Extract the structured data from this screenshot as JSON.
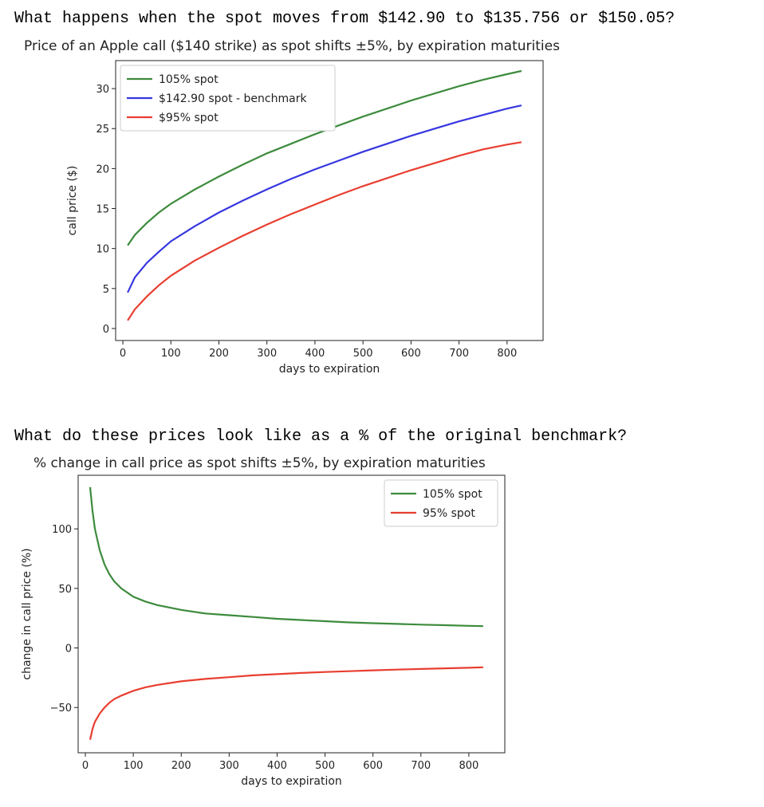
{
  "questions": {
    "q1": "What happens when the spot moves from $142.90 to $135.756 or $150.05?",
    "q2": "What do these prices look like as a % of the original benchmark?"
  },
  "chart_data": [
    {
      "type": "line",
      "title": "Price of an Apple call ($140 strike) as spot shifts ±5%, by expiration maturities",
      "xlabel": "days to expiration",
      "ylabel": "call price ($)",
      "xlim": [
        -15,
        875
      ],
      "ylim": [
        -1.5,
        33.5
      ],
      "xticks": [
        0,
        100,
        200,
        300,
        400,
        500,
        600,
        700,
        800
      ],
      "yticks": [
        0,
        5,
        10,
        15,
        20,
        25,
        30
      ],
      "legend": "upper-left",
      "series": [
        {
          "name": "105% spot",
          "color": "#3d8b3d",
          "x": [
            10,
            25,
            50,
            75,
            100,
            150,
            200,
            250,
            300,
            350,
            400,
            450,
            500,
            550,
            600,
            650,
            700,
            750,
            800,
            830
          ],
          "y": [
            10.4,
            11.7,
            13.2,
            14.5,
            15.6,
            17.4,
            19.0,
            20.5,
            21.9,
            23.1,
            24.3,
            25.4,
            26.5,
            27.5,
            28.5,
            29.4,
            30.3,
            31.1,
            31.8,
            32.2
          ]
        },
        {
          "name": "$142.90 spot - benchmark",
          "color": "#3636e0",
          "x": [
            10,
            25,
            50,
            75,
            100,
            150,
            200,
            250,
            300,
            350,
            400,
            450,
            500,
            550,
            600,
            650,
            700,
            750,
            800,
            830
          ],
          "y": [
            4.5,
            6.4,
            8.2,
            9.6,
            10.9,
            12.8,
            14.5,
            16.0,
            17.4,
            18.7,
            19.9,
            21.0,
            22.1,
            23.1,
            24.1,
            25.0,
            25.9,
            26.7,
            27.5,
            27.9
          ]
        },
        {
          "name": "$95% spot",
          "color": "#e83e30",
          "x": [
            10,
            25,
            50,
            75,
            100,
            150,
            200,
            250,
            300,
            350,
            400,
            450,
            500,
            550,
            600,
            650,
            700,
            750,
            800,
            830
          ],
          "y": [
            1.0,
            2.4,
            4.0,
            5.4,
            6.6,
            8.5,
            10.1,
            11.6,
            13.0,
            14.3,
            15.5,
            16.7,
            17.8,
            18.8,
            19.8,
            20.7,
            21.6,
            22.4,
            23.0,
            23.3
          ]
        }
      ]
    },
    {
      "type": "line",
      "title": "% change in call price as spot shifts ±5%, by expiration maturities",
      "xlabel": "days to expiration",
      "ylabel": "change in call price (%)",
      "xlim": [
        -15,
        875
      ],
      "ylim": [
        -88,
        145
      ],
      "xticks": [
        0,
        100,
        200,
        300,
        400,
        500,
        600,
        700,
        800
      ],
      "yticks": [
        -50,
        0,
        50,
        100
      ],
      "yticklabels": [
        "−50",
        "0",
        "50",
        "100"
      ],
      "legend": "upper-right",
      "series": [
        {
          "name": "105% spot",
          "color": "#3d8b3d",
          "x": [
            10,
            15,
            20,
            30,
            40,
            50,
            60,
            75,
            100,
            125,
            150,
            200,
            250,
            300,
            350,
            400,
            450,
            500,
            550,
            600,
            650,
            700,
            750,
            800,
            830
          ],
          "y": [
            135,
            115,
            100,
            82,
            70,
            62,
            56,
            50,
            43,
            39,
            36,
            32,
            29,
            27.5,
            26,
            24.5,
            23.5,
            22.5,
            21.5,
            20.8,
            20.2,
            19.6,
            19.1,
            18.6,
            18.3
          ]
        },
        {
          "name": "95% spot",
          "color": "#e83e30",
          "x": [
            10,
            15,
            20,
            30,
            40,
            50,
            60,
            75,
            100,
            125,
            150,
            200,
            250,
            300,
            350,
            400,
            450,
            500,
            550,
            600,
            650,
            700,
            750,
            800,
            830
          ],
          "y": [
            -77,
            -68,
            -62,
            -55,
            -50,
            -46,
            -43,
            -40,
            -36,
            -33,
            -31,
            -28,
            -26,
            -24.5,
            -23,
            -22,
            -21,
            -20.2,
            -19.5,
            -18.8,
            -18.2,
            -17.6,
            -17.1,
            -16.6,
            -16.2
          ]
        }
      ]
    }
  ]
}
